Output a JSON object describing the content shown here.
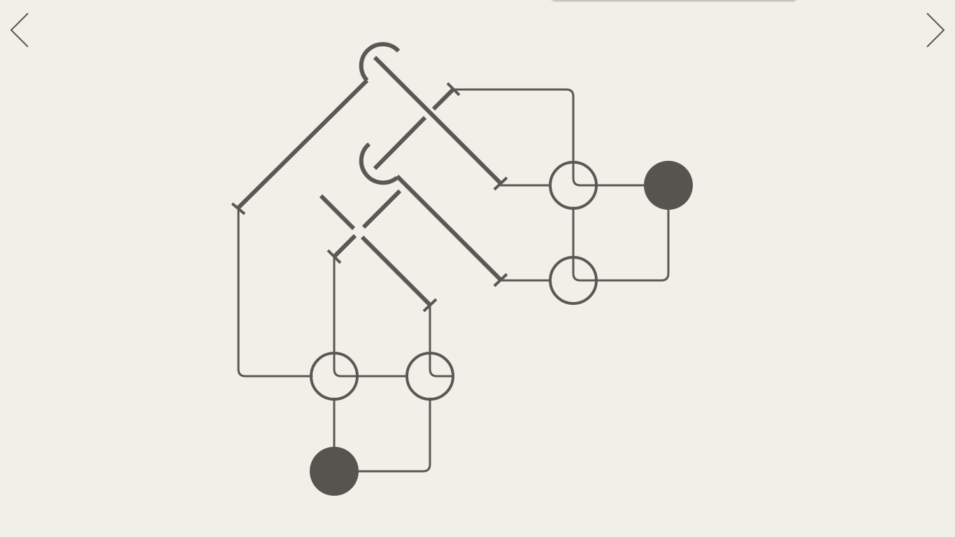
{
  "navigation": {
    "prev_icon": "chevron-left-icon",
    "next_icon": "chevron-right-icon"
  },
  "colors": {
    "background": "#f0efe8",
    "ink": "#5b5854",
    "filled_node": "#575450",
    "top_bar": "#d6d5cf"
  },
  "puzzle": {
    "filled_nodes": 2,
    "ring_nodes": 6,
    "levers": 7,
    "hooks": 2
  }
}
